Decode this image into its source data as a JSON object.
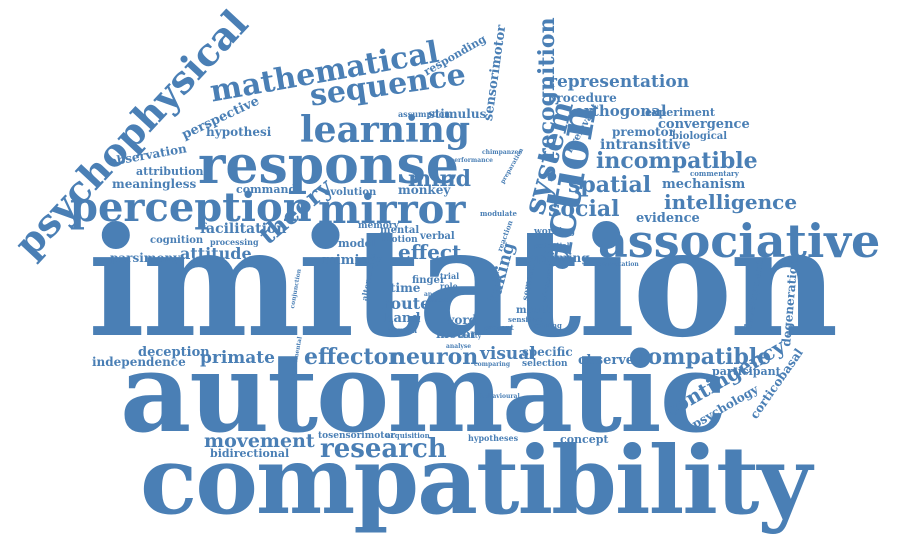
{
  "colors": {
    "primary": "#4a7fb5",
    "background": "#ffffff"
  },
  "words": {
    "imitation": "imitation",
    "automatic": "automatic",
    "compatibility": "compatibility",
    "associative": "associative",
    "response": "response",
    "perception": "perception",
    "mirror": "mirror",
    "learning": "learning",
    "mathematical": "mathematical",
    "sequence": "sequence",
    "psychophysical": "psychophysical",
    "system": "system",
    "recognition": "recognition",
    "action": "action",
    "representation": "representation",
    "procedure": "procedure",
    "orthogonal": "orthogonal",
    "experiment": "experiment",
    "convergence": "convergence",
    "premotor": "premotor",
    "biological": "biological",
    "intransitive": "intransitive",
    "incompatible": "incompatible",
    "spatial": "spatial",
    "mechanism": "mechanism",
    "intelligence": "intelligence",
    "social": "social",
    "evidence": "evidence",
    "theory": "theory",
    "facilitation": "facilitation",
    "attitude": "attitude",
    "cognition": "cognition",
    "processing": "processing",
    "parsimony": "parsimony",
    "meaningless": "meaningless",
    "observation": "observation",
    "attribution": "attribution",
    "perspective": "perspective",
    "hypothesi": "hypothesi",
    "command": "command",
    "evolution": "evolution",
    "monkey": "monkey",
    "mind": "mind",
    "model": "model",
    "mimicry": "mimicry",
    "effect": "effect",
    "responding": "responding",
    "sensorimotor": "sensorimotor",
    "stimulus": "stimulus",
    "assumption": "assumption",
    "irrelevant": "irrelevant",
    "commentary": "commentary",
    "memory": "memory",
    "mental": "mental",
    "motion": "motion",
    "verbal": "verbal",
    "time": "time",
    "route": "route",
    "hand": "hand",
    "human": "human",
    "word": "word",
    "motor": "motor",
    "taking": "taking",
    "mouth": "mouth",
    "sensitive": "sensitive",
    "training": "training",
    "semantic": "semantic",
    "working": "working",
    "potential": "potential",
    "priming": "priming",
    "commutation": "commutation",
    "independence": "independence",
    "deception": "deception",
    "primate": "primate",
    "effector": "effector",
    "neuron": "neuron",
    "visual": "visual",
    "specific": "specific",
    "selection": "selection",
    "observed": "observed",
    "compatible": "compatible",
    "participant": "participant",
    "development": "development",
    "degeneration": "degeneration",
    "contingency": "contingency",
    "psychology": "psychology",
    "corticobasal": "corticobasal",
    "movement": "movement",
    "tosensorimotor": "tosensorimotor",
    "acquisition": "acquisition",
    "hypotheses": "hypotheses",
    "concept": "concept",
    "research": "research",
    "bidirectional": "bidirectional",
    "finger": "finger",
    "role": "role",
    "trial": "trial",
    "present": "present",
    "analyse": "analyse",
    "comparing": "comparing",
    "alternative": "alternative",
    "conjunction": "conjunction",
    "modulate": "modulate",
    "chimpanzee": "chimpanzee",
    "performance": "performance",
    "preparation": "preparation",
    "reaction": "reaction",
    "direct": "direct",
    "ape": "ape",
    "ability": "ability",
    "behavioural": "behavioural",
    "relationship": "relationship",
    "experimental": "experimental"
  }
}
